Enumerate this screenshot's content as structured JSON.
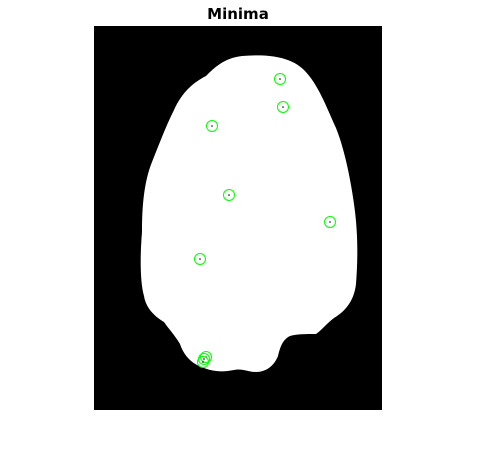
{
  "figure": {
    "title": "Minima"
  },
  "colors": {
    "background": "#000000",
    "region": "#ffffff",
    "marker_circle": "#00ff00",
    "marker_dot": "#000000"
  },
  "markers": {
    "shape": "circle-with-center-dot",
    "count": 9
  }
}
